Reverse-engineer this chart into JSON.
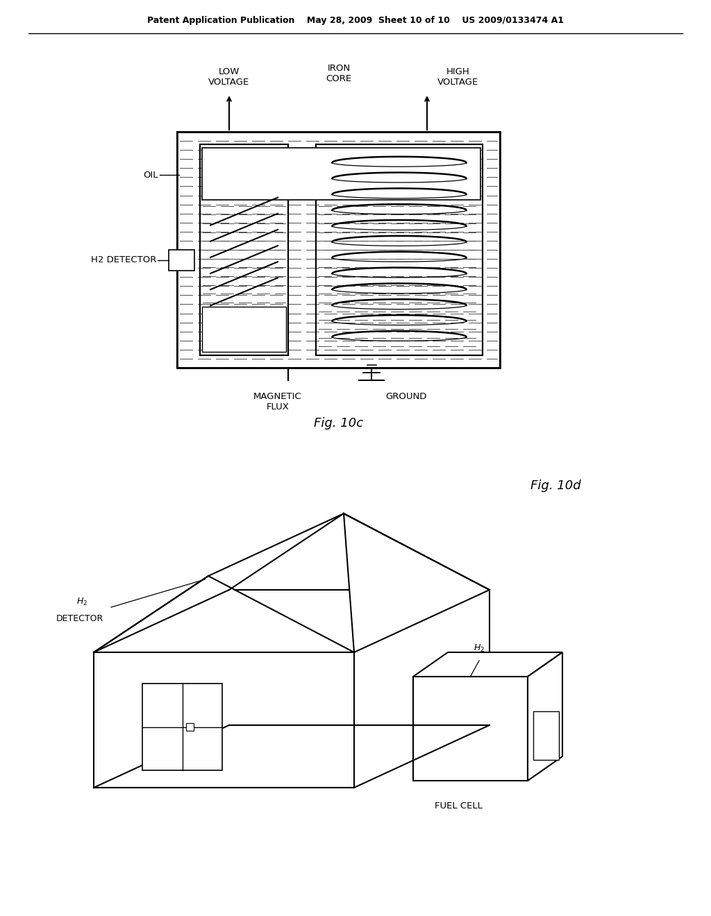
{
  "bg_color": "#ffffff",
  "header_text": "Patent Application Publication    May 28, 2009  Sheet 10 of 10    US 2009/0133474 A1",
  "fig10c_label": "Fig. 10c",
  "fig10d_label": "Fig. 10d"
}
